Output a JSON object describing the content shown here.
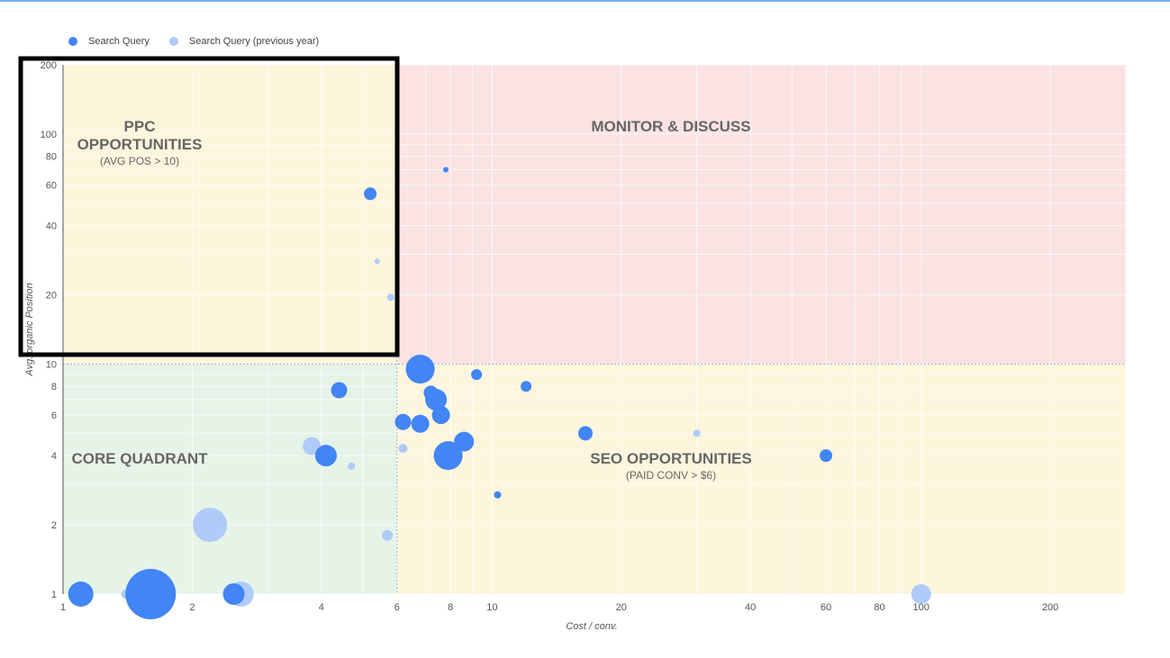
{
  "legend": {
    "current_label": "Search Query",
    "previous_label": "Search Query (previous year)"
  },
  "colors": {
    "current": "#4285f4",
    "previous": "#aecbfa",
    "quadrant_top_left": "#fdf5dc",
    "quadrant_top_right": "#fbe3e3",
    "quadrant_bottom_left": "#e6f3e7",
    "quadrant_bottom_right": "#fdf5dc",
    "highlight_box": "#000000"
  },
  "quadrants": {
    "top_left": {
      "title_line1": "PPC",
      "title_line2": "OPPORTUNITIES",
      "subtitle": "(AVG POS > 10)"
    },
    "top_right": {
      "title": "MONITOR & DISCUSS"
    },
    "bottom_left": {
      "title": "CORE QUADRANT"
    },
    "bottom_right": {
      "title": "SEO OPPORTUNITIES",
      "subtitle": "(PAID CONV > $6)"
    }
  },
  "chart_data": {
    "type": "scatter",
    "xlabel": "Cost / conv.",
    "ylabel": "Avg. organic Position",
    "x_scale": "log",
    "y_scale": "log",
    "xlim": [
      1,
      300
    ],
    "ylim": [
      1,
      200
    ],
    "x_ticks": [
      1,
      2,
      4,
      6,
      8,
      10,
      20,
      40,
      60,
      80,
      100,
      200
    ],
    "y_ticks": [
      1,
      2,
      4,
      6,
      8,
      10,
      20,
      40,
      60,
      80,
      100,
      200
    ],
    "x_tick_labels": [
      "1",
      "2",
      "4",
      "6",
      "8",
      "10",
      "20",
      "40",
      "60",
      "80",
      "100",
      "200"
    ],
    "y_tick_labels": [
      "1",
      "2",
      "4",
      "6",
      "8",
      "10",
      "20",
      "40",
      "60",
      "80",
      "100",
      "200"
    ],
    "reference_lines": {
      "x": 6,
      "y": 10
    },
    "grid": true,
    "legend_position": "top-left",
    "series": [
      {
        "name": "Search Query",
        "points": [
          {
            "x": 1.1,
            "y": 1.0,
            "size": 14
          },
          {
            "x": 1.6,
            "y": 1.0,
            "size": 28
          },
          {
            "x": 2.5,
            "y": 1.0,
            "size": 12
          },
          {
            "x": 6.8,
            "y": 9.5,
            "size": 16
          },
          {
            "x": 7.4,
            "y": 7.0,
            "size": 12
          },
          {
            "x": 7.6,
            "y": 6.0,
            "size": 10
          },
          {
            "x": 7.9,
            "y": 4.0,
            "size": 16
          },
          {
            "x": 8.6,
            "y": 4.6,
            "size": 11
          },
          {
            "x": 6.8,
            "y": 5.5,
            "size": 10
          },
          {
            "x": 4.4,
            "y": 7.7,
            "size": 9
          },
          {
            "x": 4.1,
            "y": 4.0,
            "size": 12
          },
          {
            "x": 5.2,
            "y": 55,
            "size": 7
          },
          {
            "x": 16.5,
            "y": 5.0,
            "size": 8
          },
          {
            "x": 60,
            "y": 4.0,
            "size": 7
          },
          {
            "x": 7.8,
            "y": 70,
            "size": 3
          },
          {
            "x": 6.2,
            "y": 5.6,
            "size": 9
          },
          {
            "x": 7.2,
            "y": 7.5,
            "size": 8
          },
          {
            "x": 9.2,
            "y": 9.0,
            "size": 6
          },
          {
            "x": 12.0,
            "y": 8.0,
            "size": 6
          },
          {
            "x": 10.3,
            "y": 2.7,
            "size": 4
          }
        ]
      },
      {
        "name": "Search Query (previous year)",
        "points": [
          {
            "x": 2.2,
            "y": 2.0,
            "size": 19
          },
          {
            "x": 2.6,
            "y": 1.0,
            "size": 14
          },
          {
            "x": 3.8,
            "y": 4.4,
            "size": 10
          },
          {
            "x": 100,
            "y": 1.0,
            "size": 11
          },
          {
            "x": 5.7,
            "y": 1.8,
            "size": 6
          },
          {
            "x": 1.4,
            "y": 1.0,
            "size": 5
          },
          {
            "x": 1.8,
            "y": 1.0,
            "size": 3
          },
          {
            "x": 30,
            "y": 5.0,
            "size": 4
          },
          {
            "x": 5.8,
            "y": 19.5,
            "size": 4
          },
          {
            "x": 5.4,
            "y": 28,
            "size": 3
          },
          {
            "x": 6.2,
            "y": 4.3,
            "size": 5
          },
          {
            "x": 4.7,
            "y": 3.6,
            "size": 4
          }
        ]
      }
    ]
  }
}
